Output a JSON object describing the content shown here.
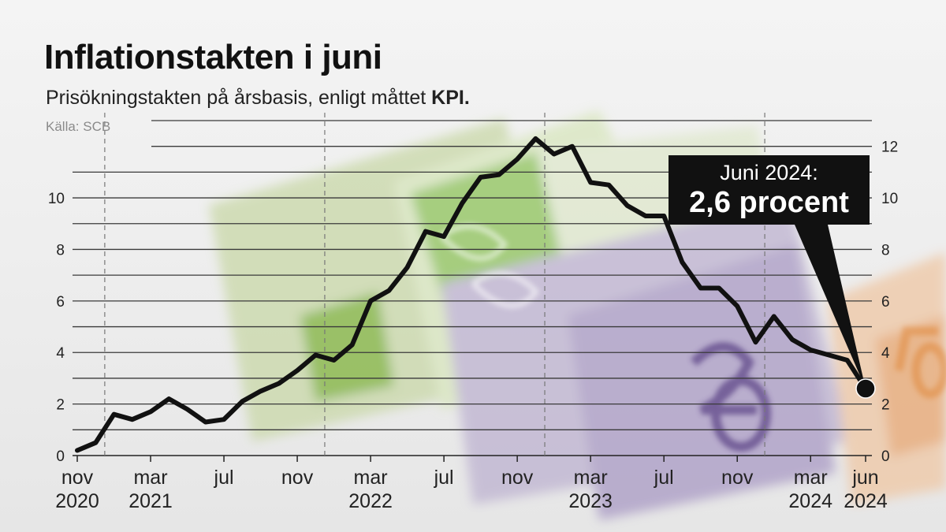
{
  "header": {
    "title": "Inflationstakten i juni",
    "subtitle_text": "Prisökningstakten på årsbasis, enligt måttet ",
    "subtitle_bold": "KPI.",
    "source": "Källa: SCB"
  },
  "callout": {
    "line1": "Juni 2024:",
    "line2": "2,6 procent"
  },
  "colors": {
    "line": "#111111",
    "grid": "#333333",
    "callout_bg": "#111111",
    "callout_text": "#ffffff"
  },
  "chart_data": {
    "type": "line",
    "title": "Inflationstakten i juni",
    "subtitle": "Prisökningstakten på årsbasis, enligt måttet KPI.",
    "source": "Källa: SCB",
    "ylim": [
      0,
      13
    ],
    "left_ticks": [
      0,
      2,
      4,
      6,
      8,
      10
    ],
    "right_ticks": [
      0,
      2,
      4,
      6,
      8,
      10,
      12
    ],
    "grid": true,
    "x_tick_labels": [
      {
        "month": "nov",
        "year": "2020"
      },
      {
        "month": "mar",
        "year": "2021"
      },
      {
        "month": "jul",
        "year": ""
      },
      {
        "month": "nov",
        "year": ""
      },
      {
        "month": "mar",
        "year": "2022"
      },
      {
        "month": "jul",
        "year": ""
      },
      {
        "month": "nov",
        "year": ""
      },
      {
        "month": "mar",
        "year": "2023"
      },
      {
        "month": "jul",
        "year": ""
      },
      {
        "month": "nov",
        "year": ""
      },
      {
        "month": "mar",
        "year": "2024"
      },
      {
        "month": "jun",
        "year": "2024"
      }
    ],
    "x": [
      "2020-11",
      "2020-12",
      "2021-01",
      "2021-02",
      "2021-03",
      "2021-04",
      "2021-05",
      "2021-06",
      "2021-07",
      "2021-08",
      "2021-09",
      "2021-10",
      "2021-11",
      "2021-12",
      "2022-01",
      "2022-02",
      "2022-03",
      "2022-04",
      "2022-05",
      "2022-06",
      "2022-07",
      "2022-08",
      "2022-09",
      "2022-10",
      "2022-11",
      "2022-12",
      "2023-01",
      "2023-02",
      "2023-03",
      "2023-04",
      "2023-05",
      "2023-06",
      "2023-07",
      "2023-08",
      "2023-09",
      "2023-10",
      "2023-11",
      "2023-12",
      "2024-01",
      "2024-02",
      "2024-03",
      "2024-04",
      "2024-05",
      "2024-06"
    ],
    "series": [
      {
        "values": [
          0.2,
          0.5,
          1.6,
          1.4,
          1.7,
          2.2,
          1.8,
          1.3,
          1.4,
          2.1,
          2.5,
          2.8,
          3.3,
          3.9,
          3.7,
          4.3,
          6.0,
          6.4,
          7.3,
          8.7,
          8.5,
          9.8,
          10.8,
          10.9,
          11.5,
          12.3,
          11.7,
          12.0,
          10.6,
          10.5,
          9.7,
          9.3,
          9.3,
          7.5,
          6.5,
          6.5,
          5.8,
          4.4,
          5.4,
          4.5,
          4.1,
          3.9,
          3.7,
          2.6
        ]
      }
    ],
    "highlight": {
      "x": "2024-06",
      "y": 2.6
    }
  }
}
